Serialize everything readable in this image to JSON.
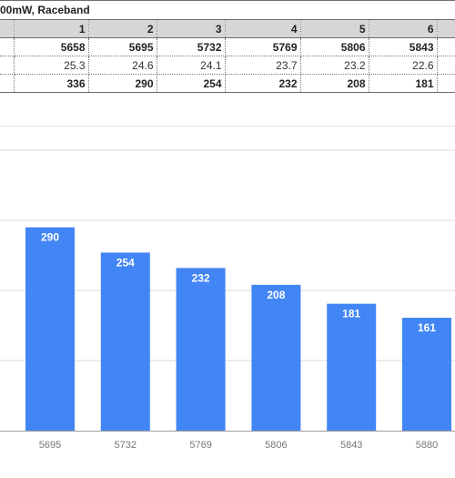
{
  "sheet": {
    "title": "00mW, Raceband",
    "columns": [
      "1",
      "2",
      "3",
      "4",
      "5",
      "6"
    ],
    "rows": [
      [
        "5658",
        "5695",
        "5732",
        "5769",
        "5806",
        "5843"
      ],
      [
        "25.3",
        "24.6",
        "24.1",
        "23.7",
        "23.2",
        "22.6"
      ],
      [
        "336",
        "290",
        "254",
        "232",
        "208",
        "181"
      ]
    ]
  },
  "chart_data": {
    "type": "bar",
    "categories": [
      "5695",
      "5732",
      "5769",
      "5806",
      "5843",
      "5880"
    ],
    "values": [
      290,
      254,
      232,
      208,
      181,
      161
    ],
    "data_labels": [
      "290",
      "254",
      "232",
      "208",
      "181",
      "161"
    ],
    "bar_color": "#4285f4",
    "gridline_color": "#d9d9d9",
    "grid": true,
    "ylim": [
      0,
      400
    ]
  }
}
